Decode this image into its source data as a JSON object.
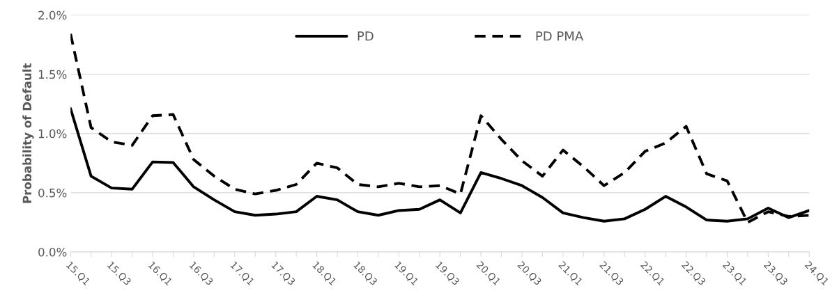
{
  "chart_data": {
    "type": "line",
    "ylabel": "Probability of Default",
    "categories": [
      "15.Q1",
      null,
      "15.Q3",
      null,
      "16.Q1",
      null,
      "16.Q3",
      null,
      "17.Q1",
      null,
      "17.Q3",
      null,
      "18.Q1",
      null,
      "18.Q3",
      null,
      "19.Q1",
      null,
      "19.Q3",
      null,
      "20.Q1",
      null,
      "20.Q3",
      null,
      "21.Q1",
      null,
      "21.Q3",
      null,
      "22.Q1",
      null,
      "22.Q3",
      null,
      "23.Q1",
      null,
      "23.Q3",
      null,
      "24.Q1"
    ],
    "series": [
      {
        "name": "PD",
        "color": "#000000",
        "line_style": "solid",
        "values": [
          1.21,
          0.64,
          0.54,
          0.53,
          0.76,
          0.755,
          0.55,
          0.44,
          0.34,
          0.31,
          0.32,
          0.34,
          0.47,
          0.44,
          0.34,
          0.31,
          0.35,
          0.36,
          0.44,
          0.33,
          0.67,
          0.62,
          0.56,
          0.46,
          0.33,
          0.29,
          0.26,
          0.28,
          0.36,
          0.47,
          0.38,
          0.27,
          0.26,
          0.28,
          0.37,
          0.29,
          0.35
        ]
      },
      {
        "name": "PD PMA",
        "color": "#000000",
        "line_style": "dashed",
        "values": [
          1.84,
          1.05,
          0.93,
          0.9,
          1.15,
          1.16,
          0.78,
          0.64,
          0.53,
          0.49,
          0.52,
          0.57,
          0.75,
          0.71,
          0.57,
          0.55,
          0.58,
          0.55,
          0.56,
          0.49,
          1.15,
          0.95,
          0.77,
          0.64,
          0.86,
          0.72,
          0.56,
          0.67,
          0.85,
          0.92,
          1.06,
          0.66,
          0.6,
          0.25,
          0.34,
          0.3,
          0.31
        ]
      }
    ],
    "ylim": [
      0,
      2
    ],
    "yticks": [
      {
        "value": 0,
        "label": "0.0%"
      },
      {
        "value": 0.5,
        "label": "0.5%"
      },
      {
        "value": 1,
        "label": "1.0%"
      },
      {
        "value": 1.5,
        "label": "1.5%"
      },
      {
        "value": 2,
        "label": "2.0%"
      }
    ],
    "grid": "y",
    "legend": "top"
  }
}
